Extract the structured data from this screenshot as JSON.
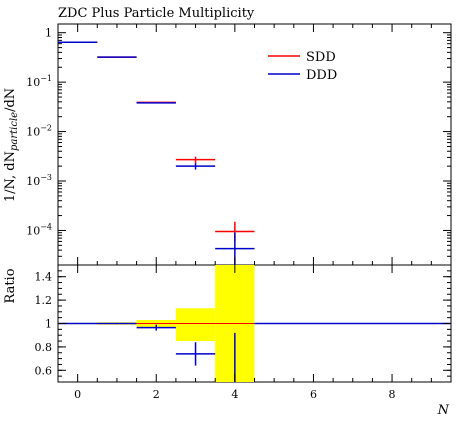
{
  "chart_data": {
    "type": "histogram",
    "title": "ZDC Plus Particle Multiplicity",
    "xlabel": "N",
    "ylabel_main": {
      "prefix": "1/N, dN",
      "sub": "particle",
      "suffix": "/dN"
    },
    "ylabel_ratio": "Ratio",
    "xlim": [
      -0.5,
      9.5
    ],
    "ylim_main": [
      2e-05,
      1.5
    ],
    "ylim_ratio": [
      0.5,
      1.5
    ],
    "y_scale_main": "log",
    "x_ticks": [
      {
        "value": 0,
        "label": "0"
      },
      {
        "value": 2,
        "label": "2"
      },
      {
        "value": 4,
        "label": "4"
      },
      {
        "value": 6,
        "label": "6"
      },
      {
        "value": 8,
        "label": "8"
      }
    ],
    "y_ticks_main": [
      {
        "value": 1,
        "base": "1",
        "exp": ""
      },
      {
        "value": 0.1,
        "base": "10",
        "exp": "−1"
      },
      {
        "value": 0.01,
        "base": "10",
        "exp": "−2"
      },
      {
        "value": 0.001,
        "base": "10",
        "exp": "−3"
      },
      {
        "value": 0.0001,
        "base": "10",
        "exp": "−4"
      }
    ],
    "y_ticks_ratio": [
      {
        "value": 0.6,
        "label": "0.6"
      },
      {
        "value": 0.8,
        "label": "0.8"
      },
      {
        "value": 1.0,
        "label": "1"
      },
      {
        "value": 1.2,
        "label": "1.2"
      },
      {
        "value": 1.4,
        "label": "1.4"
      }
    ],
    "legend_position": "top-right",
    "series": [
      {
        "name": "SDD",
        "color": "#ff0000",
        "bins": [
          {
            "xlo": -0.5,
            "xhi": 0.5,
            "y": 0.64,
            "ylo": 0.64,
            "yhi": 0.64
          },
          {
            "xlo": 0.5,
            "xhi": 1.5,
            "y": 0.32,
            "ylo": 0.32,
            "yhi": 0.32
          },
          {
            "xlo": 1.5,
            "xhi": 2.5,
            "y": 0.039,
            "ylo": 0.039,
            "yhi": 0.039
          },
          {
            "xlo": 2.5,
            "xhi": 3.5,
            "y": 0.0027,
            "ylo": 0.0023,
            "yhi": 0.0031
          },
          {
            "xlo": 3.5,
            "xhi": 4.5,
            "y": 9.5e-05,
            "ylo": 6e-05,
            "yhi": 0.00015
          }
        ]
      },
      {
        "name": "DDD",
        "color": "#0000cc",
        "bins": [
          {
            "xlo": -0.5,
            "xhi": 0.5,
            "y": 0.64,
            "ylo": 0.64,
            "yhi": 0.64
          },
          {
            "xlo": 0.5,
            "xhi": 1.5,
            "y": 0.32,
            "ylo": 0.32,
            "yhi": 0.32
          },
          {
            "xlo": 1.5,
            "xhi": 2.5,
            "y": 0.038,
            "ylo": 0.038,
            "yhi": 0.038
          },
          {
            "xlo": 2.5,
            "xhi": 3.5,
            "y": 0.002,
            "ylo": 0.0017,
            "yhi": 0.0023
          },
          {
            "xlo": 3.5,
            "xhi": 4.5,
            "y": 4.3e-05,
            "ylo": 2e-05,
            "yhi": 9e-05
          }
        ]
      }
    ],
    "ratio": {
      "reference_color": "#ff0000",
      "band_color": "#ffff00",
      "band": [
        {
          "xlo": -0.5,
          "xhi": 0.5,
          "lo": 0.995,
          "hi": 1.005
        },
        {
          "xlo": 0.5,
          "xhi": 1.5,
          "lo": 0.99,
          "hi": 1.01
        },
        {
          "xlo": 1.5,
          "xhi": 2.5,
          "lo": 0.97,
          "hi": 1.03
        },
        {
          "xlo": 2.5,
          "xhi": 3.5,
          "lo": 0.85,
          "hi": 1.13
        },
        {
          "xlo": 3.5,
          "xhi": 4.5,
          "lo": 0.5,
          "hi": 1.5
        }
      ],
      "reference_line": 1.0,
      "reference_extent": [
        -0.5,
        9.5
      ],
      "points": [
        {
          "xlo": -0.5,
          "xhi": 0.5,
          "y": 1.0,
          "ylo": 1.0,
          "yhi": 1.0
        },
        {
          "xlo": 0.5,
          "xhi": 1.5,
          "y": 1.0,
          "ylo": 0.995,
          "yhi": 1.005
        },
        {
          "xlo": 1.5,
          "xhi": 2.5,
          "y": 0.965,
          "ylo": 0.94,
          "yhi": 0.99
        },
        {
          "xlo": 2.5,
          "xhi": 3.5,
          "y": 0.74,
          "ylo": 0.64,
          "yhi": 0.84
        },
        {
          "xlo": 3.5,
          "xhi": 4.5,
          "y": 0.45,
          "ylo": 0.2,
          "yhi": 0.92
        }
      ],
      "points_color": "#0000cc",
      "continuation_line": {
        "y": 1.0,
        "from": 4.5,
        "to": 9.5,
        "color": "#0000cc"
      }
    }
  }
}
